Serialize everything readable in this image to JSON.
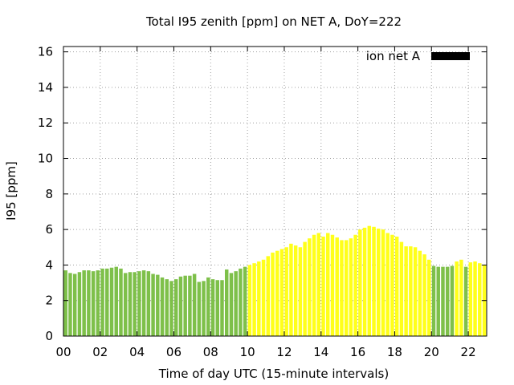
{
  "chart_data": {
    "type": "bar",
    "title": "Total I95 zenith [ppm] on NET A, DoY=222",
    "xlabel": "Time of day UTC (15-minute intervals)",
    "ylabel": "I95 [ppm]",
    "xlim": [
      0,
      23
    ],
    "ylim": [
      0,
      16.3
    ],
    "x_ticks": [
      {
        "value": 0,
        "label": "00"
      },
      {
        "value": 2,
        "label": "02"
      },
      {
        "value": 4,
        "label": "04"
      },
      {
        "value": 6,
        "label": "06"
      },
      {
        "value": 8,
        "label": "08"
      },
      {
        "value": 10,
        "label": "10"
      },
      {
        "value": 12,
        "label": "12"
      },
      {
        "value": 14,
        "label": "14"
      },
      {
        "value": 16,
        "label": "16"
      },
      {
        "value": 18,
        "label": "18"
      },
      {
        "value": 20,
        "label": "20"
      },
      {
        "value": 22,
        "label": "22"
      }
    ],
    "y_ticks": [
      {
        "value": 0,
        "label": "0"
      },
      {
        "value": 2,
        "label": "2"
      },
      {
        "value": 4,
        "label": "4"
      },
      {
        "value": 6,
        "label": "6"
      },
      {
        "value": 8,
        "label": "8"
      },
      {
        "value": 10,
        "label": "10"
      },
      {
        "value": 12,
        "label": "12"
      },
      {
        "value": 14,
        "label": "14"
      },
      {
        "value": 16,
        "label": "16"
      }
    ],
    "grid": true,
    "legend": {
      "position": "top-right",
      "entries": [
        {
          "label": "ion net A",
          "color": "#000000"
        }
      ]
    },
    "colors": {
      "green": "#7ec04a",
      "yellow": "#ffff1a"
    },
    "series": [
      {
        "name": "ion net A",
        "x": [
          0,
          0.25,
          0.5,
          0.75,
          1,
          1.25,
          1.5,
          1.75,
          2,
          2.25,
          2.5,
          2.75,
          3,
          3.25,
          3.5,
          3.75,
          4,
          4.25,
          4.5,
          4.75,
          5,
          5.25,
          5.5,
          5.75,
          6,
          6.25,
          6.5,
          6.75,
          7,
          7.25,
          7.5,
          7.75,
          8,
          8.25,
          8.5,
          8.75,
          9,
          9.25,
          9.5,
          9.75,
          10,
          10.25,
          10.5,
          10.75,
          11,
          11.25,
          11.5,
          11.75,
          12,
          12.25,
          12.5,
          12.75,
          13,
          13.25,
          13.5,
          13.75,
          14,
          14.25,
          14.5,
          14.75,
          15,
          15.25,
          15.5,
          15.75,
          16,
          16.25,
          16.5,
          16.75,
          17,
          17.25,
          17.5,
          17.75,
          18,
          18.25,
          18.5,
          18.75,
          19,
          19.25,
          19.5,
          19.75,
          20,
          20.25,
          20.5,
          20.75,
          21,
          21.25,
          21.5,
          21.75,
          22,
          22.25,
          22.5,
          22.75
        ],
        "values": [
          3.7,
          3.55,
          3.5,
          3.6,
          3.7,
          3.7,
          3.65,
          3.7,
          3.8,
          3.8,
          3.85,
          3.9,
          3.8,
          3.55,
          3.6,
          3.6,
          3.65,
          3.7,
          3.65,
          3.5,
          3.45,
          3.3,
          3.2,
          3.1,
          3.2,
          3.35,
          3.4,
          3.4,
          3.5,
          3.05,
          3.1,
          3.3,
          3.2,
          3.15,
          3.15,
          3.75,
          3.55,
          3.65,
          3.8,
          3.9,
          4.0,
          4.1,
          4.2,
          4.3,
          4.5,
          4.7,
          4.8,
          4.9,
          5.0,
          5.2,
          5.1,
          5.0,
          5.3,
          5.5,
          5.7,
          5.8,
          5.6,
          5.8,
          5.7,
          5.55,
          5.4,
          5.4,
          5.5,
          5.7,
          6.0,
          6.1,
          6.2,
          6.15,
          6.05,
          6.0,
          5.8,
          5.7,
          5.6,
          5.3,
          5.05,
          5.05,
          5.0,
          4.8,
          4.6,
          4.3,
          3.95,
          3.9,
          3.9,
          3.9,
          3.95,
          4.2,
          4.3,
          3.9,
          4.15,
          4.2,
          4.1,
          4.0
        ],
        "color_class": [
          "g",
          "g",
          "g",
          "g",
          "g",
          "g",
          "g",
          "g",
          "g",
          "g",
          "g",
          "g",
          "g",
          "g",
          "g",
          "g",
          "g",
          "g",
          "g",
          "g",
          "g",
          "g",
          "g",
          "g",
          "g",
          "g",
          "g",
          "g",
          "g",
          "g",
          "g",
          "g",
          "g",
          "g",
          "g",
          "g",
          "g",
          "g",
          "g",
          "g",
          "y",
          "y",
          "y",
          "y",
          "y",
          "y",
          "y",
          "y",
          "y",
          "y",
          "y",
          "y",
          "y",
          "y",
          "y",
          "y",
          "y",
          "y",
          "y",
          "y",
          "y",
          "y",
          "y",
          "y",
          "y",
          "y",
          "y",
          "y",
          "y",
          "y",
          "y",
          "y",
          "y",
          "y",
          "y",
          "y",
          "y",
          "y",
          "y",
          "y",
          "g",
          "g",
          "g",
          "g",
          "g",
          "y",
          "y",
          "g",
          "y",
          "y",
          "y",
          "y"
        ]
      }
    ]
  }
}
